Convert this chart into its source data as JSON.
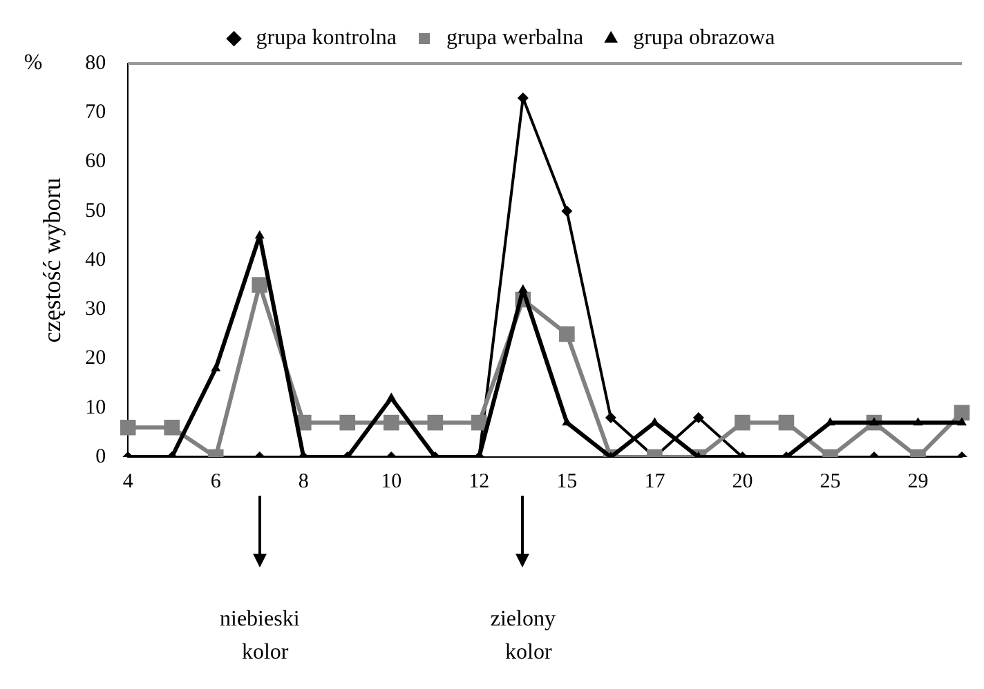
{
  "chart_data": {
    "type": "line",
    "ylabel": "częstość wyboru",
    "categories": [
      "4",
      null,
      "6",
      null,
      "8",
      null,
      "10",
      null,
      "12",
      null,
      "15",
      null,
      "17",
      null,
      "20",
      null,
      "25",
      null,
      "29",
      null
    ],
    "series": [
      {
        "name": "grupa kontrolna",
        "color": "#000000",
        "marker": "diamond",
        "values": [
          0,
          0,
          0,
          0,
          0,
          0,
          0,
          0,
          0,
          73,
          50,
          8,
          0,
          8,
          0,
          0,
          0,
          0,
          0,
          0
        ]
      },
      {
        "name": "grupa werbalna",
        "color": "#808080",
        "marker": "square",
        "values": [
          6,
          6,
          0,
          35,
          7,
          7,
          7,
          7,
          7,
          32,
          25,
          0,
          0,
          0,
          7,
          7,
          0,
          7,
          0,
          9
        ]
      },
      {
        "name": "grupa obrazowa",
        "color": "#000000",
        "marker": "triangle",
        "values": [
          0,
          0,
          18,
          45,
          0,
          0,
          12,
          0,
          0,
          34,
          7,
          0,
          7,
          0,
          0,
          0,
          7,
          7,
          7,
          7
        ]
      }
    ],
    "ylim": [
      0,
      80
    ],
    "yticks": [
      0,
      10,
      20,
      30,
      40,
      50,
      60,
      70,
      80
    ],
    "grid": false,
    "legend": "top",
    "annotations": [
      "%",
      "niebieski kolor",
      "zielony kolor"
    ]
  }
}
